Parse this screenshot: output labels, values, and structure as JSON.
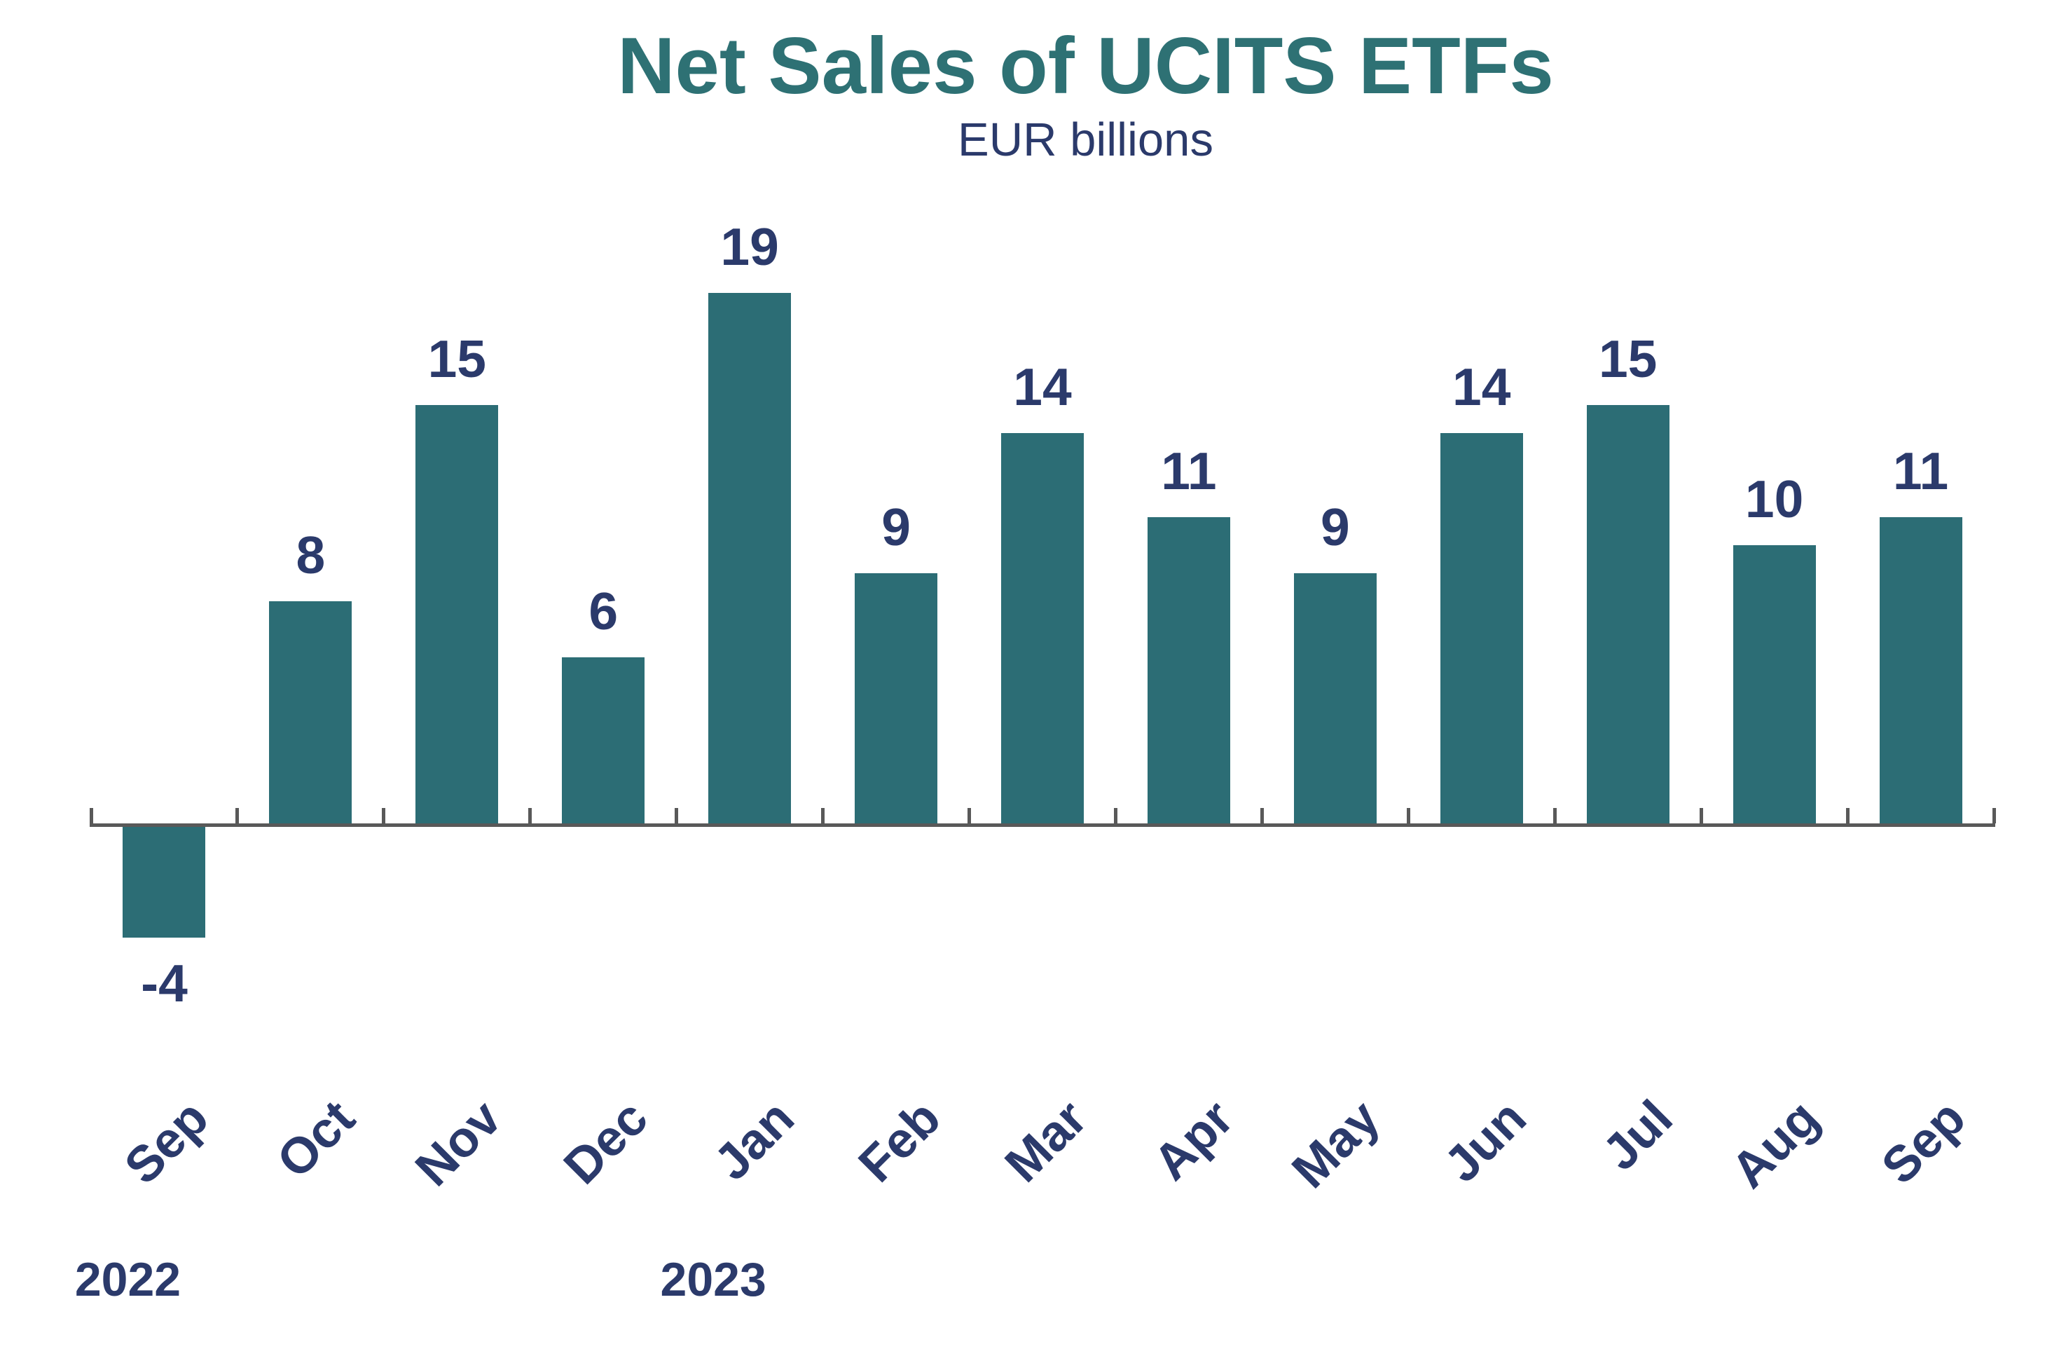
{
  "page": {
    "background": "#ffffff"
  },
  "chart_data": {
    "type": "bar",
    "title": "Net Sales of UCITS ETFs",
    "subtitle": "EUR billions",
    "categories": [
      "Sep",
      "Oct",
      "Nov",
      "Dec",
      "Jan",
      "Feb",
      "Mar",
      "Apr",
      "May",
      "Jun",
      "Jul",
      "Aug",
      "Sep"
    ],
    "values": [
      -4,
      8,
      15,
      6,
      19,
      9,
      14,
      11,
      9,
      14,
      15,
      10,
      11
    ],
    "year_groups": [
      {
        "label": "2022",
        "start_index": 0
      },
      {
        "label": "2023",
        "start_index": 4
      }
    ],
    "colors": {
      "bar": "#2C6D75",
      "title": "#2E7174",
      "text": "#2B3A6B",
      "axis": "#595959"
    },
    "layout_hints": {
      "ylim": [
        -6,
        20
      ],
      "baseline_value": 0,
      "grid": false,
      "legend": false,
      "y_axis_visible": false,
      "x_tick_marks": "inside-up",
      "month_label_rotation_deg": -45,
      "data_labels": "outside-end"
    }
  }
}
